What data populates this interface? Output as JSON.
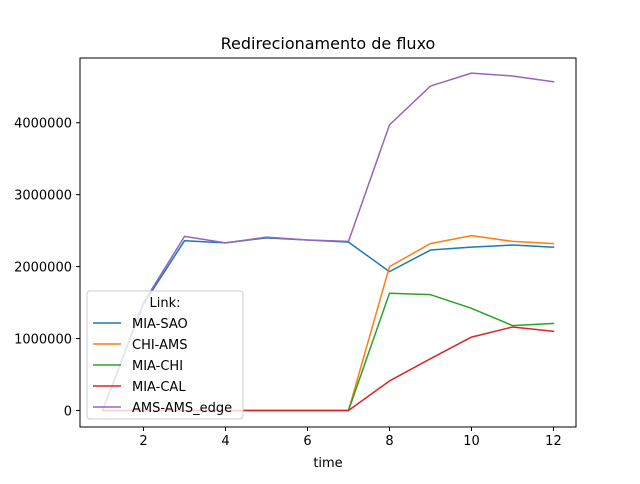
{
  "chart_data": {
    "type": "line",
    "title": "Redirecionamento de fluxo",
    "xlabel": "time",
    "ylabel": "",
    "xlim": [
      0.45,
      12.55
    ],
    "ylim": [
      -230000,
      4900000
    ],
    "xticks": [
      2,
      4,
      6,
      8,
      10,
      12
    ],
    "yticks": [
      0,
      1000000,
      2000000,
      3000000,
      4000000
    ],
    "x": [
      1,
      2,
      3,
      4,
      5,
      6,
      7,
      8,
      9,
      10,
      11,
      12
    ],
    "legend_title": "Link:",
    "legend_position": "lower-left",
    "grid": false,
    "series": [
      {
        "name": "MIA-SAO",
        "color": "#1f77b4",
        "values": [
          0,
          1480000,
          2360000,
          2330000,
          2400000,
          2370000,
          2340000,
          1930000,
          2230000,
          2270000,
          2300000,
          2270000
        ]
      },
      {
        "name": "CHI-AMS",
        "color": "#ff7f0e",
        "values": [
          0,
          0,
          0,
          0,
          0,
          0,
          0,
          2000000,
          2320000,
          2430000,
          2350000,
          2320000
        ]
      },
      {
        "name": "MIA-CHI",
        "color": "#2ca02c",
        "values": [
          0,
          0,
          0,
          0,
          0,
          0,
          0,
          1630000,
          1610000,
          1420000,
          1180000,
          1210000
        ]
      },
      {
        "name": "MIA-CAL",
        "color": "#d62728",
        "values": [
          0,
          0,
          0,
          0,
          0,
          0,
          0,
          410000,
          720000,
          1020000,
          1160000,
          1100000
        ]
      },
      {
        "name": "AMS-AMS_edge",
        "color": "#9467bd",
        "values": [
          0,
          1500000,
          2420000,
          2330000,
          2410000,
          2370000,
          2350000,
          3970000,
          4510000,
          4690000,
          4650000,
          4570000
        ]
      }
    ]
  }
}
